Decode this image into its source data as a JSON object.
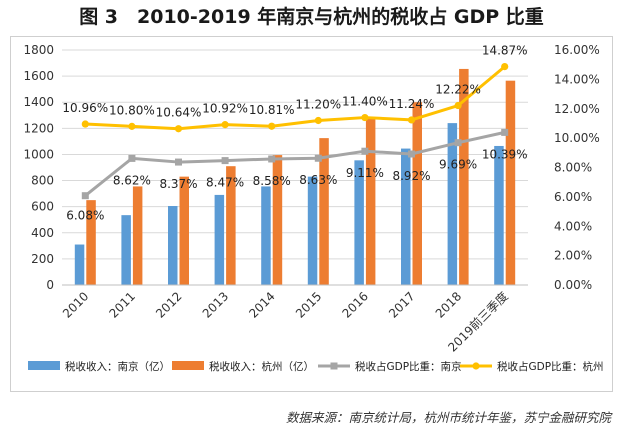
{
  "title": "图 3　2010-2019 年南京与杭州的税收占 GDP 比重",
  "source": "数据来源：南京统计局，杭州市统计年鉴，苏宁金融研究院",
  "colors": {
    "nanjing_tax": "#5b9bd5",
    "hangzhou_tax": "#ed7d31",
    "nanjing_ratio": "#a5a5a5",
    "hangzhou_ratio": "#ffc000"
  },
  "chart_data": {
    "type": "bar",
    "categories": [
      "2010",
      "2011",
      "2012",
      "2013",
      "2014",
      "2015",
      "2016",
      "2017",
      "2018",
      "2019前三季度"
    ],
    "series": [
      {
        "name": "税收收入：南京（亿）",
        "type": "bar",
        "axis": "left",
        "values": [
          310,
          535,
          605,
          690,
          755,
          830,
          955,
          1045,
          1240,
          1065
        ]
      },
      {
        "name": "税收收入：杭州（亿）",
        "type": "bar",
        "axis": "left",
        "values": [
          650,
          755,
          830,
          910,
          995,
          1125,
          1275,
          1400,
          1655,
          1565
        ]
      },
      {
        "name": "税收占GDP比重：南京",
        "type": "line",
        "axis": "right",
        "values": [
          6.08,
          8.62,
          8.37,
          8.47,
          8.58,
          8.63,
          9.11,
          8.92,
          9.69,
          10.39
        ],
        "labels": [
          "6.08%",
          "8.62%",
          "8.37%",
          "8.47%",
          "8.58%",
          "8.63%",
          "9.11%",
          "8.92%",
          "9.69%",
          "10.39%"
        ]
      },
      {
        "name": "税收占GDP比重：杭州",
        "type": "line",
        "axis": "right",
        "values": [
          10.96,
          10.8,
          10.64,
          10.92,
          10.81,
          11.2,
          11.4,
          11.24,
          12.22,
          14.87
        ],
        "labels": [
          "10.96%",
          "10.80%",
          "10.64%",
          "10.92%",
          "10.81%",
          "11.20%",
          "11.40%",
          "11.24%",
          "12.22%",
          "14.87%"
        ]
      }
    ],
    "ylim_left": [
      0,
      1800
    ],
    "yticks_left": [
      "0",
      "200",
      "400",
      "600",
      "800",
      "1000",
      "1200",
      "1400",
      "1600",
      "1800"
    ],
    "ylim_right": [
      0,
      16
    ],
    "yticks_right": [
      "0.00%",
      "2.00%",
      "4.00%",
      "6.00%",
      "8.00%",
      "10.00%",
      "12.00%",
      "14.00%",
      "16.00%"
    ],
    "grid": true,
    "legend_position": "bottom"
  }
}
